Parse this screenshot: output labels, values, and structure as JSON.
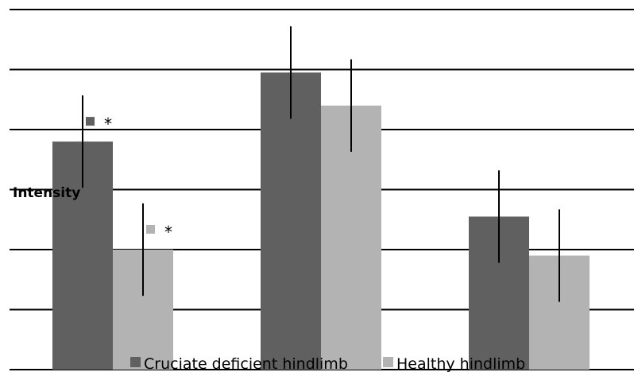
{
  "chart_data": {
    "type": "bar",
    "ylabel": "Intensity",
    "categories": [
      "",
      "",
      ""
    ],
    "ylim": [
      0,
      6
    ],
    "grid": true,
    "legend_position": "bottom",
    "series": [
      {
        "name": "Cruciate deficient hindlimb",
        "color": "#606060",
        "values": [
          3.8,
          4.95,
          2.55
        ],
        "error": [
          0.77,
          0.77,
          0.77
        ],
        "significance": [
          "*",
          "",
          ""
        ]
      },
      {
        "name": "Healthy hindlimb",
        "color": "#b3b3b3",
        "values": [
          2.0,
          4.4,
          1.9
        ],
        "error": [
          0.77,
          0.77,
          0.77
        ],
        "significance": [
          "*",
          "",
          ""
        ]
      }
    ]
  }
}
